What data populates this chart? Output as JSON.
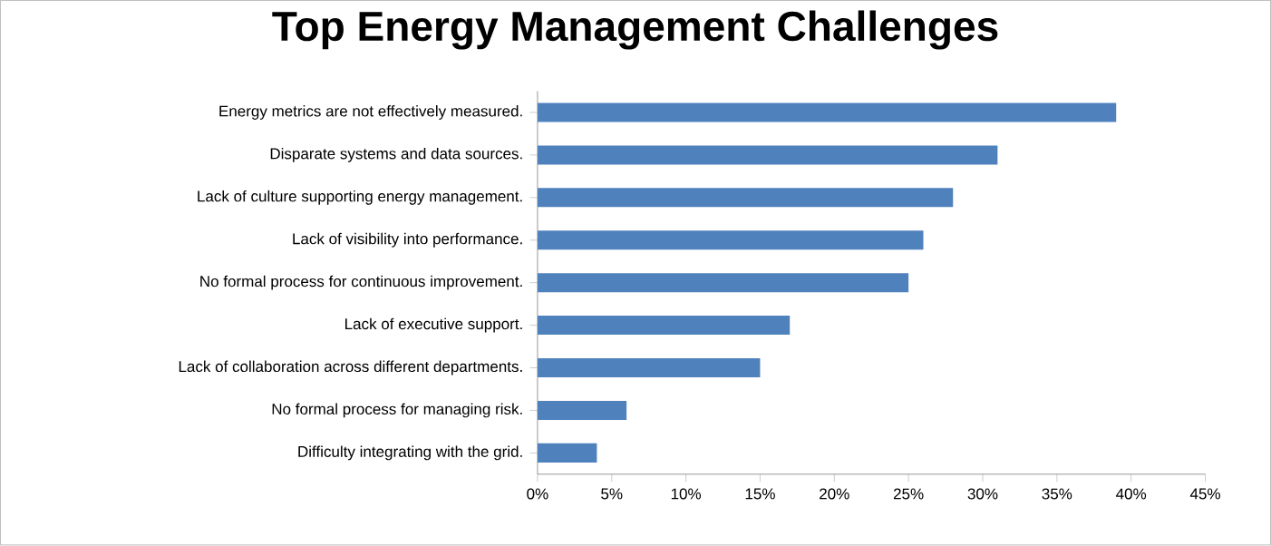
{
  "chart_data": {
    "type": "bar",
    "orientation": "horizontal",
    "title": "Top Energy Management Challenges",
    "categories": [
      "Energy metrics are not effectively measured.",
      "Disparate systems and data sources.",
      "Lack of culture supporting energy management.",
      "Lack of visibility into performance.",
      "No formal process for continuous improvement.",
      "Lack of executive support.",
      "Lack of collaboration across different departments.",
      "No formal process for managing risk.",
      "Difficulty integrating with the grid."
    ],
    "values": [
      39,
      31,
      28,
      26,
      25,
      17,
      15,
      6,
      4
    ],
    "color": "#4f81bd",
    "xlim": [
      0,
      45
    ],
    "xticks": [
      {
        "value": 0,
        "label": "0%"
      },
      {
        "value": 5,
        "label": "5%"
      },
      {
        "value": 10,
        "label": "10%"
      },
      {
        "value": 15,
        "label": "15%"
      },
      {
        "value": 20,
        "label": "20%"
      },
      {
        "value": 25,
        "label": "25%"
      },
      {
        "value": 30,
        "label": "30%"
      },
      {
        "value": 35,
        "label": "35%"
      },
      {
        "value": 40,
        "label": "40%"
      },
      {
        "value": 45,
        "label": "45%"
      }
    ]
  }
}
